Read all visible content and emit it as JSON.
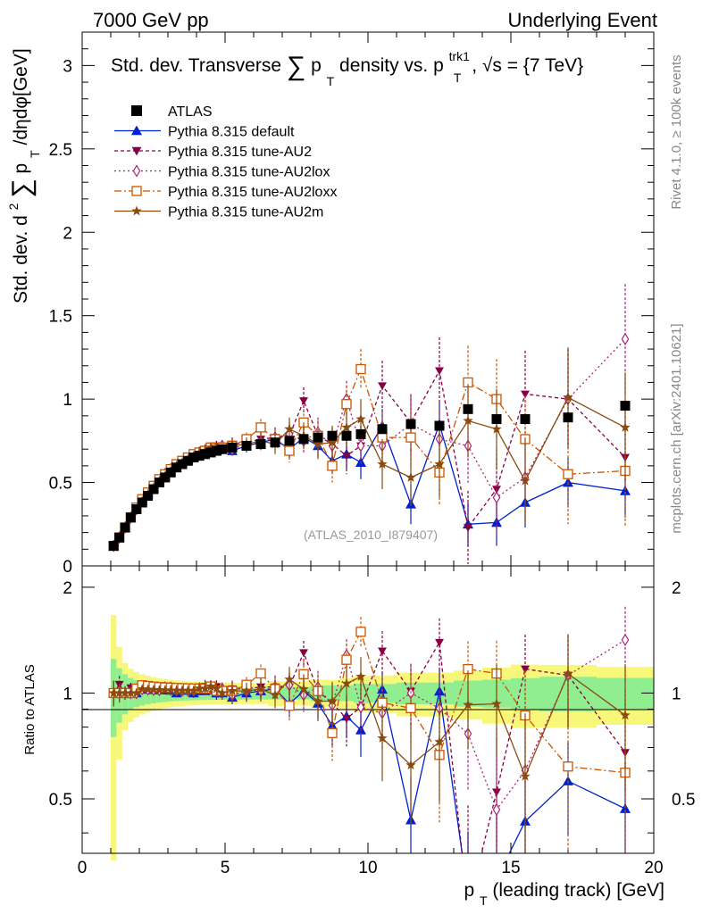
{
  "header": {
    "left": "7000 GeV pp",
    "right": "Underlying Event"
  },
  "side_labels": {
    "rivet": "Rivet 4.1.0, ≥ 100k events",
    "mcplots": "mcplots.cern.ch [arXiv:2401.10621]"
  },
  "chart_data": {
    "type": "scatter",
    "title": {
      "pre": "Std. dev. Transverse",
      "sym": "∑",
      "p": "p",
      "sub": "T",
      "mid": " density vs. p",
      "sup2": "trk1",
      "sub2": "T",
      "post": ", √s = {7 TeV}"
    },
    "watermark": "(ATLAS_2010_I879407)",
    "ylabel": {
      "pre": "Std. dev. d",
      "sup": "2",
      "sym": "∑",
      "p": "p",
      "sub": "T",
      "post": "/dηdφ[GeV]"
    },
    "xlabel": {
      "p": "p",
      "sub": "T",
      "post": " (leading track) [GeV]"
    },
    "ratio_ylabel": "Ratio to ATLAS",
    "xlim": [
      0,
      20
    ],
    "ylim_main": [
      0,
      3.2
    ],
    "ylim_ratio": [
      0.35,
      2.3
    ],
    "x_ticks": [
      "0",
      "5",
      "10",
      "15",
      "20"
    ],
    "main_ticks": [
      {
        "v": 0,
        "label": "0"
      },
      {
        "v": 0.5,
        "label": "0.5"
      },
      {
        "v": 1,
        "label": "1"
      },
      {
        "v": 1.5,
        "label": "1.5"
      },
      {
        "v": 2,
        "label": "2"
      },
      {
        "v": 2.5,
        "label": "2.5"
      },
      {
        "v": 3,
        "label": "3"
      }
    ],
    "ratio_ticks": [
      {
        "v": 0.5,
        "label": "0.5"
      },
      {
        "v": 1,
        "label": "1"
      },
      {
        "v": 2,
        "label": "2"
      }
    ],
    "ratio_right_ticks": [
      {
        "v": 0.5,
        "label": "0.5"
      },
      {
        "v": 1,
        "label": "1"
      },
      {
        "v": 2,
        "label": "2"
      }
    ],
    "bins": [
      1.1,
      1.3,
      1.5,
      1.7,
      1.9,
      2.1,
      2.3,
      2.5,
      2.7,
      2.9,
      3.1,
      3.3,
      3.5,
      3.7,
      3.9,
      4.1,
      4.3,
      4.5,
      4.7,
      4.9,
      5.25,
      5.75,
      6.25,
      6.75,
      7.25,
      7.75,
      8.25,
      8.75,
      9.25,
      9.75,
      10.5,
      11.5,
      12.5,
      13.5,
      14.5,
      15.5,
      17,
      19
    ],
    "band_edges": [
      1,
      1.2,
      1.4,
      1.6,
      1.8,
      2,
      2.2,
      2.4,
      2.6,
      2.8,
      3,
      3.2,
      3.4,
      3.6,
      3.8,
      4,
      4.2,
      4.4,
      4.6,
      4.8,
      5,
      5.5,
      6,
      6.5,
      7,
      7.5,
      8,
      8.5,
      9,
      9.5,
      10,
      11,
      12,
      13,
      14,
      15,
      16,
      18,
      20
    ],
    "atlas": {
      "name": "ATLAS",
      "values": [
        0.12,
        0.17,
        0.23,
        0.29,
        0.34,
        0.38,
        0.42,
        0.46,
        0.5,
        0.53,
        0.56,
        0.59,
        0.61,
        0.63,
        0.65,
        0.66,
        0.67,
        0.68,
        0.69,
        0.7,
        0.71,
        0.72,
        0.73,
        0.74,
        0.75,
        0.76,
        0.77,
        0.78,
        0.78,
        0.79,
        0.82,
        0.85,
        0.84,
        0.94,
        0.88,
        0.88,
        0.89,
        0.96
      ],
      "band_inner": [
        0.03,
        0.03,
        0.03,
        0.03,
        0.03,
        0.03,
        0.03,
        0.03,
        0.03,
        0.03,
        0.03,
        0.03,
        0.03,
        0.03,
        0.03,
        0.03,
        0.03,
        0.03,
        0.03,
        0.03,
        0.03,
        0.03,
        0.03,
        0.03,
        0.03,
        0.03,
        0.04,
        0.04,
        0.04,
        0.05,
        0.05,
        0.06,
        0.06,
        0.08,
        0.08,
        0.09,
        0.1,
        0.1
      ],
      "band_outer": [
        0.08,
        0.06,
        0.05,
        0.05,
        0.05,
        0.05,
        0.05,
        0.05,
        0.05,
        0.05,
        0.05,
        0.05,
        0.05,
        0.05,
        0.05,
        0.05,
        0.05,
        0.05,
        0.05,
        0.05,
        0.05,
        0.05,
        0.05,
        0.06,
        0.06,
        0.06,
        0.07,
        0.07,
        0.08,
        0.09,
        0.1,
        0.12,
        0.12,
        0.15,
        0.16,
        0.18,
        0.18,
        0.18
      ]
    },
    "series": [
      {
        "name": "Pythia 8.315 default",
        "color": "#0022cc",
        "marker": "triangle-up",
        "dash": "solid",
        "values": [
          0.12,
          0.17,
          0.23,
          0.29,
          0.34,
          0.39,
          0.43,
          0.47,
          0.51,
          0.54,
          0.57,
          0.59,
          0.62,
          0.64,
          0.65,
          0.67,
          0.68,
          0.7,
          0.69,
          0.7,
          0.69,
          0.72,
          0.74,
          0.76,
          0.7,
          0.77,
          0.72,
          0.63,
          0.67,
          0.62,
          0.84,
          0.37,
          0.85,
          0.25,
          0.26,
          0.38,
          0.5,
          0.45
        ],
        "errors": [
          0.01,
          0.01,
          0.01,
          0.01,
          0.01,
          0.01,
          0.01,
          0.01,
          0.01,
          0.01,
          0.01,
          0.01,
          0.01,
          0.02,
          0.02,
          0.02,
          0.02,
          0.02,
          0.03,
          0.03,
          0.03,
          0.04,
          0.04,
          0.05,
          0.06,
          0.06,
          0.07,
          0.08,
          0.09,
          0.1,
          0.1,
          0.12,
          0.13,
          0.13,
          0.14,
          0.15,
          0.15,
          0.16
        ]
      },
      {
        "name": "Pythia 8.315 tune-AU2",
        "color": "#880044",
        "marker": "triangle-down",
        "dash": "4,3",
        "values": [
          0.12,
          0.18,
          0.23,
          0.3,
          0.35,
          0.4,
          0.44,
          0.48,
          0.52,
          0.55,
          0.58,
          0.61,
          0.63,
          0.65,
          0.67,
          0.68,
          0.7,
          0.71,
          0.72,
          0.71,
          0.73,
          0.74,
          0.76,
          0.77,
          0.78,
          0.99,
          0.78,
          0.73,
          0.66,
          0.72,
          1.08,
          0.86,
          1.17,
          0.23,
          0.46,
          1.03,
          1.0,
          0.65
        ],
        "errors": [
          0.01,
          0.01,
          0.01,
          0.01,
          0.01,
          0.01,
          0.01,
          0.01,
          0.01,
          0.01,
          0.02,
          0.02,
          0.02,
          0.02,
          0.02,
          0.02,
          0.03,
          0.03,
          0.03,
          0.03,
          0.04,
          0.04,
          0.05,
          0.06,
          0.07,
          0.08,
          0.09,
          0.1,
          0.11,
          0.12,
          0.15,
          0.17,
          0.2,
          0.22,
          0.24,
          0.26,
          0.3,
          0.33
        ]
      },
      {
        "name": "Pythia 8.315 tune-AU2lox",
        "color": "#aa2277",
        "marker": "diamond-open",
        "dash": "2,3",
        "values": [
          0.12,
          0.17,
          0.23,
          0.29,
          0.34,
          0.39,
          0.43,
          0.47,
          0.51,
          0.55,
          0.58,
          0.6,
          0.62,
          0.64,
          0.66,
          0.68,
          0.69,
          0.7,
          0.7,
          0.72,
          0.7,
          0.73,
          0.74,
          0.77,
          0.79,
          0.75,
          0.8,
          0.72,
          1.0,
          0.72,
          0.72,
          0.85,
          0.76,
          0.72,
          0.41,
          0.53,
          1.0,
          1.36
        ],
        "errors": [
          0.01,
          0.01,
          0.01,
          0.01,
          0.01,
          0.01,
          0.01,
          0.01,
          0.01,
          0.01,
          0.02,
          0.02,
          0.02,
          0.02,
          0.02,
          0.02,
          0.03,
          0.03,
          0.03,
          0.03,
          0.04,
          0.04,
          0.05,
          0.06,
          0.07,
          0.08,
          0.09,
          0.1,
          0.11,
          0.12,
          0.15,
          0.17,
          0.2,
          0.22,
          0.24,
          0.26,
          0.3,
          0.33
        ]
      },
      {
        "name": "Pythia 8.315 tune-AU2loxx",
        "color": "#cc5500",
        "marker": "square-open",
        "dash": "8,3,2,3",
        "values": [
          0.12,
          0.17,
          0.23,
          0.29,
          0.35,
          0.4,
          0.44,
          0.48,
          0.52,
          0.55,
          0.58,
          0.61,
          0.63,
          0.65,
          0.67,
          0.68,
          0.69,
          0.71,
          0.7,
          0.71,
          0.72,
          0.76,
          0.83,
          0.76,
          0.69,
          0.86,
          0.78,
          0.6,
          0.97,
          1.18,
          0.77,
          0.77,
          0.56,
          1.1,
          1.0,
          0.76,
          0.55,
          0.57
        ],
        "errors": [
          0.01,
          0.01,
          0.01,
          0.01,
          0.01,
          0.01,
          0.01,
          0.01,
          0.01,
          0.01,
          0.02,
          0.02,
          0.02,
          0.02,
          0.02,
          0.02,
          0.03,
          0.03,
          0.03,
          0.03,
          0.04,
          0.04,
          0.05,
          0.06,
          0.07,
          0.08,
          0.09,
          0.1,
          0.11,
          0.12,
          0.15,
          0.17,
          0.2,
          0.22,
          0.24,
          0.26,
          0.3,
          0.33
        ]
      },
      {
        "name": "Pythia 8.315 tune-AU2m",
        "color": "#8b4a0e",
        "marker": "star",
        "dash": "solid",
        "values": [
          0.12,
          0.17,
          0.23,
          0.29,
          0.34,
          0.39,
          0.43,
          0.47,
          0.51,
          0.54,
          0.57,
          0.6,
          0.62,
          0.64,
          0.66,
          0.68,
          0.69,
          0.71,
          0.71,
          0.7,
          0.72,
          0.73,
          0.75,
          0.73,
          0.82,
          0.78,
          0.73,
          0.74,
          0.83,
          0.88,
          0.61,
          0.53,
          0.61,
          0.87,
          0.82,
          0.51,
          1.01,
          0.83
        ],
        "errors": [
          0.01,
          0.01,
          0.01,
          0.01,
          0.01,
          0.01,
          0.01,
          0.01,
          0.01,
          0.01,
          0.02,
          0.02,
          0.02,
          0.02,
          0.02,
          0.02,
          0.03,
          0.03,
          0.03,
          0.03,
          0.04,
          0.04,
          0.05,
          0.06,
          0.07,
          0.08,
          0.09,
          0.1,
          0.11,
          0.12,
          0.15,
          0.17,
          0.2,
          0.22,
          0.24,
          0.26,
          0.3,
          0.33
        ]
      }
    ]
  }
}
